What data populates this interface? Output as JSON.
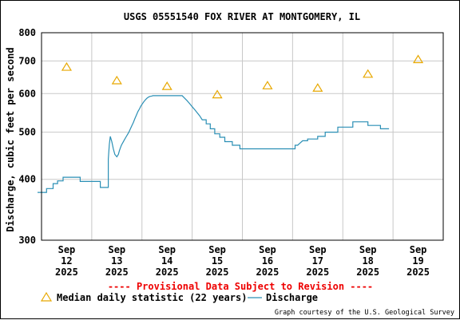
{
  "chart_data": {
    "type": "line",
    "title": "USGS 05551540 FOX RIVER AT MONTGOMERY, IL",
    "ylabel": "Discharge, cubic feet per second",
    "xlabel": "",
    "yscale": "log",
    "ylim": [
      300,
      800
    ],
    "y_ticks": [
      "300",
      "400",
      "500",
      "600",
      "700",
      "800"
    ],
    "y_tick_values": [
      300,
      400,
      500,
      600,
      700,
      800
    ],
    "x_ticks": [
      {
        "day": 12,
        "month": "Sep",
        "date": "12",
        "year": "2025"
      },
      {
        "day": 13,
        "month": "Sep",
        "date": "13",
        "year": "2025"
      },
      {
        "day": 14,
        "month": "Sep",
        "date": "14",
        "year": "2025"
      },
      {
        "day": 15,
        "month": "Sep",
        "date": "15",
        "year": "2025"
      },
      {
        "day": 16,
        "month": "Sep",
        "date": "16",
        "year": "2025"
      },
      {
        "day": 17,
        "month": "Sep",
        "date": "17",
        "year": "2025"
      },
      {
        "day": 18,
        "month": "Sep",
        "date": "18",
        "year": "2025"
      },
      {
        "day": 19,
        "month": "Sep",
        "date": "19",
        "year": "2025"
      }
    ],
    "grid": true,
    "provisional_note": "---- Provisional Data Subject to Revision ----",
    "credit": "Graph courtesy of the U.S. Geological Survey",
    "series": [
      {
        "name": "Discharge",
        "kind": "line",
        "color": "#2a8fb5",
        "x": [
          11.42,
          11.6,
          11.6,
          11.73,
          11.73,
          11.82,
          11.82,
          11.93,
          11.93,
          12.27,
          12.27,
          12.67,
          12.67,
          12.83,
          12.83,
          12.85,
          12.87,
          12.9,
          12.93,
          12.96,
          13.0,
          13.03,
          13.05,
          13.07,
          13.09,
          13.12,
          13.15,
          13.18,
          13.21,
          13.24,
          13.27,
          13.3,
          13.33,
          13.36,
          13.39,
          13.42,
          13.45,
          13.48,
          13.51,
          13.54,
          13.57,
          13.6,
          13.63,
          13.66,
          13.69,
          13.72,
          13.76,
          13.8,
          14.3,
          14.35,
          14.4,
          14.45,
          14.5,
          14.55,
          14.6,
          14.65,
          14.7,
          14.78,
          14.86,
          14.95,
          15.05,
          15.15,
          15.3,
          15.45,
          16.0,
          16.55,
          16.6,
          16.65,
          16.7,
          16.8,
          17.0,
          17.15,
          17.4,
          17.7,
          17.9,
          18.0,
          18.25,
          18.42
        ],
        "y": [
          376,
          376,
          383,
          383,
          392,
          392,
          397,
          397,
          404,
          404,
          396,
          396,
          385,
          385,
          440,
          472,
          490,
          478,
          462,
          450,
          445,
          450,
          458,
          464,
          470,
          476,
          482,
          488,
          494,
          500,
          508,
          516,
          524,
          533,
          542,
          551,
          558,
          566,
          572,
          578,
          583,
          587,
          590,
          592,
          593,
          594,
          594,
          594,
          594,
          587,
          580,
          572,
          564,
          556,
          548,
          540,
          530,
          520,
          508,
          496,
          488,
          478,
          470,
          462,
          462,
          470,
          470,
          475,
          480,
          484,
          490,
          500,
          512,
          525,
          525,
          516,
          508,
          508
        ]
      },
      {
        "name": "Median daily statistic (22 years)",
        "kind": "marker",
        "marker": "triangle",
        "color": "#e8a800",
        "x": [
          12.0,
          13.0,
          14.0,
          15.0,
          16.0,
          17.0,
          18.0,
          19.0
        ],
        "y": [
          680,
          638,
          621,
          597,
          623,
          616,
          658,
          705
        ]
      }
    ]
  }
}
